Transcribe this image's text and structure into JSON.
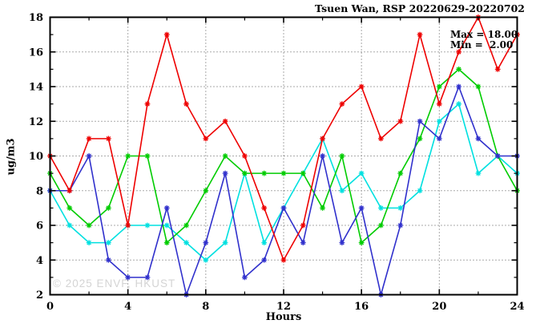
{
  "chart_data": {
    "type": "line",
    "title": "Tsuen Wan, RSP 20220629-20220702",
    "xlabel": "Hours",
    "ylabel": "ug/m3",
    "watermark": "© 2025 ENVF, HKUST",
    "annotations": {
      "max": "Max = 18.00",
      "min": "Min =  2.00"
    },
    "xlim": [
      0,
      24
    ],
    "ylim": [
      2,
      18
    ],
    "xticks": [
      0,
      4,
      8,
      12,
      16,
      20,
      24
    ],
    "xticks_minor": [
      2,
      6,
      10,
      14,
      18,
      22
    ],
    "yticks": [
      2,
      4,
      6,
      8,
      10,
      12,
      14,
      16,
      18
    ],
    "yticks_minor": [
      3,
      5,
      7,
      9,
      11,
      13,
      15,
      17
    ],
    "grid": true,
    "legend": "none",
    "marker": "star",
    "x": [
      0,
      1,
      2,
      3,
      4,
      5,
      6,
      7,
      8,
      9,
      10,
      11,
      12,
      13,
      14,
      15,
      16,
      17,
      18,
      19,
      20,
      21,
      22,
      23,
      24
    ],
    "series": [
      {
        "name": "cyan",
        "color": "#00e0e0",
        "values": [
          8,
          6,
          5,
          5,
          6,
          6,
          6,
          5,
          4,
          5,
          9,
          5,
          7,
          9,
          11,
          8,
          9,
          7,
          7,
          8,
          12,
          13,
          9,
          10,
          9
        ]
      },
      {
        "name": "green",
        "color": "#00cc00",
        "values": [
          9,
          7,
          6,
          7,
          10,
          10,
          5,
          6,
          8,
          10,
          9,
          9,
          9,
          9,
          7,
          10,
          5,
          6,
          9,
          11,
          14,
          15,
          14,
          10,
          8
        ]
      },
      {
        "name": "blue",
        "color": "#3030cc",
        "values": [
          8,
          8,
          10,
          4,
          3,
          3,
          7,
          2,
          5,
          9,
          3,
          4,
          7,
          5,
          10,
          5,
          7,
          2,
          6,
          12,
          11,
          14,
          11,
          10,
          10
        ]
      },
      {
        "name": "red",
        "color": "#ee0000",
        "values": [
          10,
          8,
          11,
          11,
          6,
          13,
          17,
          13,
          11,
          12,
          10,
          7,
          4,
          6,
          11,
          13,
          14,
          11,
          12,
          17,
          13,
          16,
          18,
          15,
          17
        ]
      }
    ]
  }
}
